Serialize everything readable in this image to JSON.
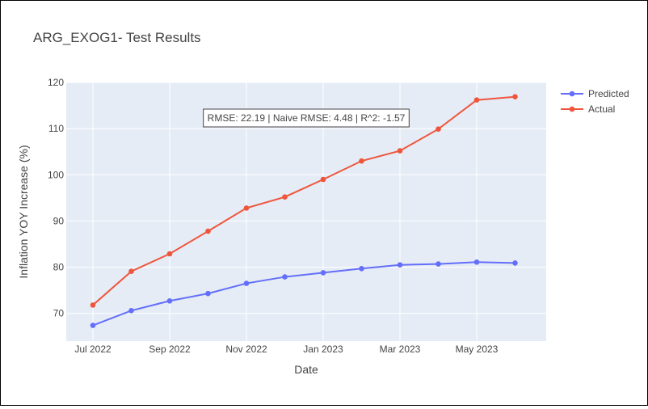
{
  "chart_data": {
    "type": "line",
    "title": "ARG_EXOG1- Test Results",
    "xlabel": "Date",
    "ylabel": "Inflation YOY Increase (%)",
    "annotation": "RMSE: 22.19 | Naive RMSE: 4.48 | R^2: -1.57",
    "x": [
      "2022-07-01",
      "2022-08-01",
      "2022-09-01",
      "2022-10-01",
      "2022-11-01",
      "2022-12-01",
      "2023-01-01",
      "2023-02-01",
      "2023-03-01",
      "2023-04-01",
      "2023-05-01",
      "2023-06-01"
    ],
    "x_tick_labels": [
      "Jul 2022",
      "Sep 2022",
      "Nov 2022",
      "Jan 2023",
      "Mar 2023",
      "May 2023"
    ],
    "y_tick_labels": [
      "70",
      "80",
      "90",
      "100",
      "110",
      "120"
    ],
    "ylim": [
      64,
      120
    ],
    "grid": true,
    "legend_position": "top-right",
    "series": [
      {
        "name": "Predicted",
        "color": "#636efa",
        "values": [
          67.4,
          70.6,
          72.7,
          74.3,
          76.5,
          77.9,
          78.8,
          79.7,
          80.5,
          80.7,
          81.1,
          80.9
        ]
      },
      {
        "name": "Actual",
        "color": "#ef553b",
        "values": [
          71.8,
          79.1,
          82.9,
          87.8,
          92.8,
          95.2,
          99.0,
          103.0,
          105.2,
          109.9,
          116.2,
          116.9
        ]
      }
    ]
  }
}
